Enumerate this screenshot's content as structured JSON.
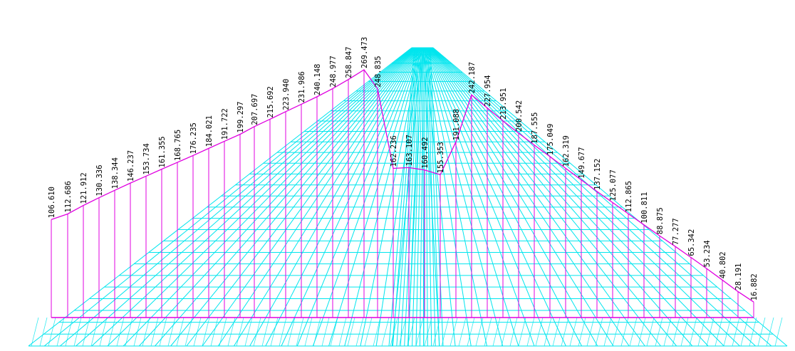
{
  "chart_data": {
    "type": "line",
    "title": "",
    "xlabel": "",
    "ylabel": "",
    "colors": {
      "mesh": "#00e5ee",
      "profile": "#e000e0",
      "label_text": "#000000",
      "background": "#ffffff"
    },
    "series": [
      {
        "values": [
          106.61,
          112.686,
          121.912,
          130.336,
          138.344,
          146.237,
          153.734,
          161.355,
          168.765,
          176.235,
          184.021,
          191.722,
          199.297,
          207.697,
          215.692,
          223.94,
          231.986,
          240.148,
          248.977,
          258.847,
          269.473,
          248.835,
          162.236,
          163.107,
          160.492,
          155.353,
          191.088,
          242.187,
          227.954,
          213.951,
          200.542,
          187.555,
          175.049,
          162.319,
          149.677,
          137.152,
          125.077,
          112.865,
          100.811,
          88.875,
          77.277,
          65.342,
          53.234,
          40.802,
          28.191,
          16.882
        ],
        "labels": [
          "106.610",
          "112.686",
          "121.912",
          "130.336",
          "138.344",
          "146.237",
          "153.734",
          "161.355",
          "168.765",
          "176.235",
          "184.021",
          "191.722",
          "199.297",
          "207.697",
          "215.692",
          "223.940",
          "231.986",
          "240.148",
          "248.977",
          "258.847",
          "269.473",
          "248.835",
          "162.236",
          "163.107",
          "160.492",
          "155.353",
          "191.088",
          "242.187",
          "227.954",
          "213.951",
          "200.542",
          "187.555",
          "175.049",
          "162.319",
          "149.677",
          "137.152",
          "125.077",
          "112.865",
          "100.811",
          "88.875",
          "77.277",
          "65.342",
          "53.234",
          "40.802",
          "28.191",
          "16.882"
        ]
      }
    ]
  }
}
